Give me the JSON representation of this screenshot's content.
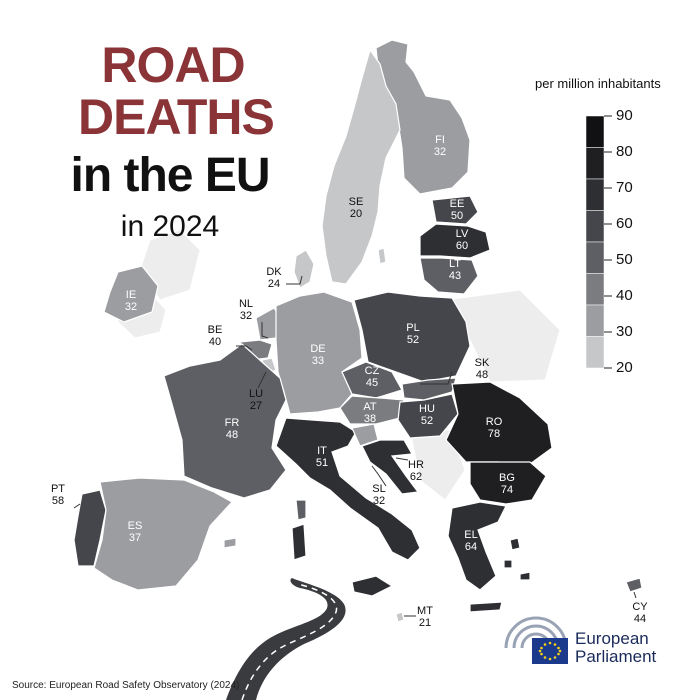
{
  "title": {
    "line1": "ROAD",
    "line2": "DEATHS",
    "line3": "in the EU",
    "line4": "in 2024"
  },
  "legend": {
    "title": "per million inhabitants",
    "ticks": [
      "90",
      "80",
      "70",
      "60",
      "50",
      "40",
      "30",
      "20"
    ],
    "min": 20,
    "max": 90,
    "colors": [
      "#111114",
      "#1f1f22",
      "#2e2f33",
      "#45464b",
      "#5e5f64",
      "#7b7c80",
      "#9c9da1",
      "#c6c7c9"
    ]
  },
  "countries": [
    {
      "code": "FI",
      "value": "32"
    },
    {
      "code": "SE",
      "value": "20"
    },
    {
      "code": "EE",
      "value": "50"
    },
    {
      "code": "LV",
      "value": "60"
    },
    {
      "code": "LT",
      "value": "43"
    },
    {
      "code": "DK",
      "value": "24"
    },
    {
      "code": "IE",
      "value": "32"
    },
    {
      "code": "NL",
      "value": "32"
    },
    {
      "code": "BE",
      "value": "40"
    },
    {
      "code": "DE",
      "value": "33"
    },
    {
      "code": "PL",
      "value": "52"
    },
    {
      "code": "LU",
      "value": "27"
    },
    {
      "code": "CZ",
      "value": "45"
    },
    {
      "code": "SK",
      "value": "48"
    },
    {
      "code": "FR",
      "value": "48"
    },
    {
      "code": "AT",
      "value": "38"
    },
    {
      "code": "HU",
      "value": "52"
    },
    {
      "code": "RO",
      "value": "78"
    },
    {
      "code": "IT",
      "value": "51"
    },
    {
      "code": "HR",
      "value": "62"
    },
    {
      "code": "SL",
      "value": "32"
    },
    {
      "code": "BG",
      "value": "74"
    },
    {
      "code": "PT",
      "value": "58"
    },
    {
      "code": "ES",
      "value": "37"
    },
    {
      "code": "EL",
      "value": "64"
    },
    {
      "code": "MT",
      "value": "21"
    },
    {
      "code": "CY",
      "value": "44"
    }
  ],
  "logo": {
    "line1": "European",
    "line2": "Parliament"
  },
  "source": "Source: European Road Safety Observatory (2024)"
}
